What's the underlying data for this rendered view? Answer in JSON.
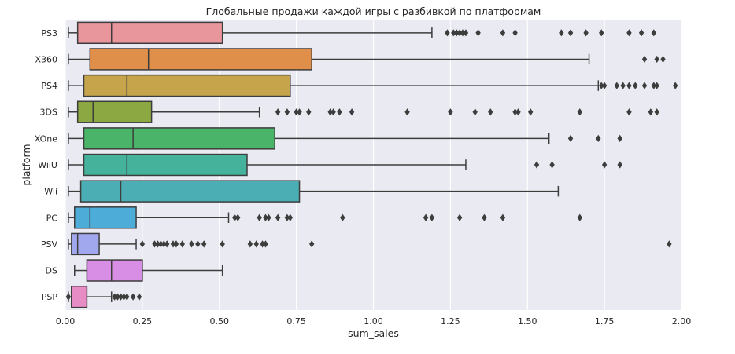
{
  "chart_data": {
    "type": "boxplot",
    "orientation": "horizontal",
    "title": "Глобальные продажи каждой игры с разбивкой по платформам",
    "xlabel": "sum_sales",
    "ylabel": "platform",
    "xlim": [
      0,
      2.0
    ],
    "xticks": [
      0.0,
      0.25,
      0.5,
      0.75,
      1.0,
      1.25,
      1.5,
      1.75,
      2.0
    ],
    "xtick_labels": [
      "0.00",
      "0.25",
      "0.50",
      "0.75",
      "1.00",
      "1.25",
      "1.50",
      "1.75",
      "2.00"
    ],
    "grid": true,
    "background": "#eaeaf2",
    "series": [
      {
        "name": "PS3",
        "color": "#e8959c",
        "whisker_low": 0.01,
        "q1": 0.04,
        "median": 0.15,
        "q3": 0.51,
        "whisker_high": 1.19,
        "outliers": [
          1.24,
          1.26,
          1.27,
          1.28,
          1.29,
          1.3,
          1.34,
          1.42,
          1.46,
          1.61,
          1.64,
          1.69,
          1.74,
          1.83,
          1.87,
          1.91
        ]
      },
      {
        "name": "X360",
        "color": "#e08f4a",
        "whisker_low": 0.01,
        "q1": 0.08,
        "median": 0.27,
        "q3": 0.8,
        "whisker_high": 1.7,
        "outliers": [
          1.88,
          1.92,
          1.94
        ]
      },
      {
        "name": "PS4",
        "color": "#c6a44c",
        "whisker_low": 0.01,
        "q1": 0.06,
        "median": 0.2,
        "q3": 0.73,
        "whisker_high": 1.73,
        "outliers": [
          1.74,
          1.75,
          1.79,
          1.81,
          1.83,
          1.85,
          1.88,
          1.91,
          1.92,
          1.98
        ]
      },
      {
        "name": "3DS",
        "color": "#8ca842",
        "whisker_low": 0.01,
        "q1": 0.04,
        "median": 0.09,
        "q3": 0.28,
        "whisker_high": 0.63,
        "outliers": [
          0.69,
          0.72,
          0.75,
          0.76,
          0.79,
          0.86,
          0.87,
          0.89,
          0.93,
          1.11,
          1.25,
          1.33,
          1.38,
          1.46,
          1.47,
          1.51,
          1.67,
          1.83,
          1.9,
          1.92
        ]
      },
      {
        "name": "XOne",
        "color": "#4ab468",
        "whisker_low": 0.01,
        "q1": 0.06,
        "median": 0.22,
        "q3": 0.68,
        "whisker_high": 1.57,
        "outliers": [
          1.64,
          1.73,
          1.8
        ]
      },
      {
        "name": "WiiU",
        "color": "#45b39c",
        "whisker_low": 0.01,
        "q1": 0.06,
        "median": 0.2,
        "q3": 0.59,
        "whisker_high": 1.3,
        "outliers": [
          1.53,
          1.58,
          1.75,
          1.8
        ]
      },
      {
        "name": "Wii",
        "color": "#4aaeb4",
        "whisker_low": 0.01,
        "q1": 0.05,
        "median": 0.18,
        "q3": 0.76,
        "whisker_high": 1.6,
        "outliers": []
      },
      {
        "name": "PC",
        "color": "#4eacd8",
        "whisker_low": 0.01,
        "q1": 0.03,
        "median": 0.08,
        "q3": 0.23,
        "whisker_high": 0.53,
        "outliers": [
          0.55,
          0.56,
          0.63,
          0.65,
          0.66,
          0.69,
          0.72,
          0.73,
          0.9,
          1.17,
          1.19,
          1.28,
          1.36,
          1.42,
          1.67
        ]
      },
      {
        "name": "PSV",
        "color": "#a2a8ee",
        "whisker_low": 0.01,
        "q1": 0.02,
        "median": 0.04,
        "q3": 0.11,
        "whisker_high": 0.23,
        "outliers": [
          0.25,
          0.29,
          0.3,
          0.31,
          0.32,
          0.33,
          0.35,
          0.36,
          0.38,
          0.41,
          0.43,
          0.45,
          0.51,
          0.6,
          0.62,
          0.64,
          0.65,
          0.8,
          1.96
        ]
      },
      {
        "name": "DS",
        "color": "#d88ee4",
        "whisker_low": 0.03,
        "q1": 0.07,
        "median": 0.15,
        "q3": 0.25,
        "whisker_high": 0.51,
        "outliers": []
      },
      {
        "name": "PSP",
        "color": "#e88cc6",
        "whisker_low": 0.01,
        "q1": 0.02,
        "median": 0.02,
        "q3": 0.07,
        "whisker_high": 0.15,
        "outliers": [
          0.01,
          0.01,
          0.16,
          0.17,
          0.18,
          0.19,
          0.2,
          0.22,
          0.24
        ]
      }
    ]
  }
}
